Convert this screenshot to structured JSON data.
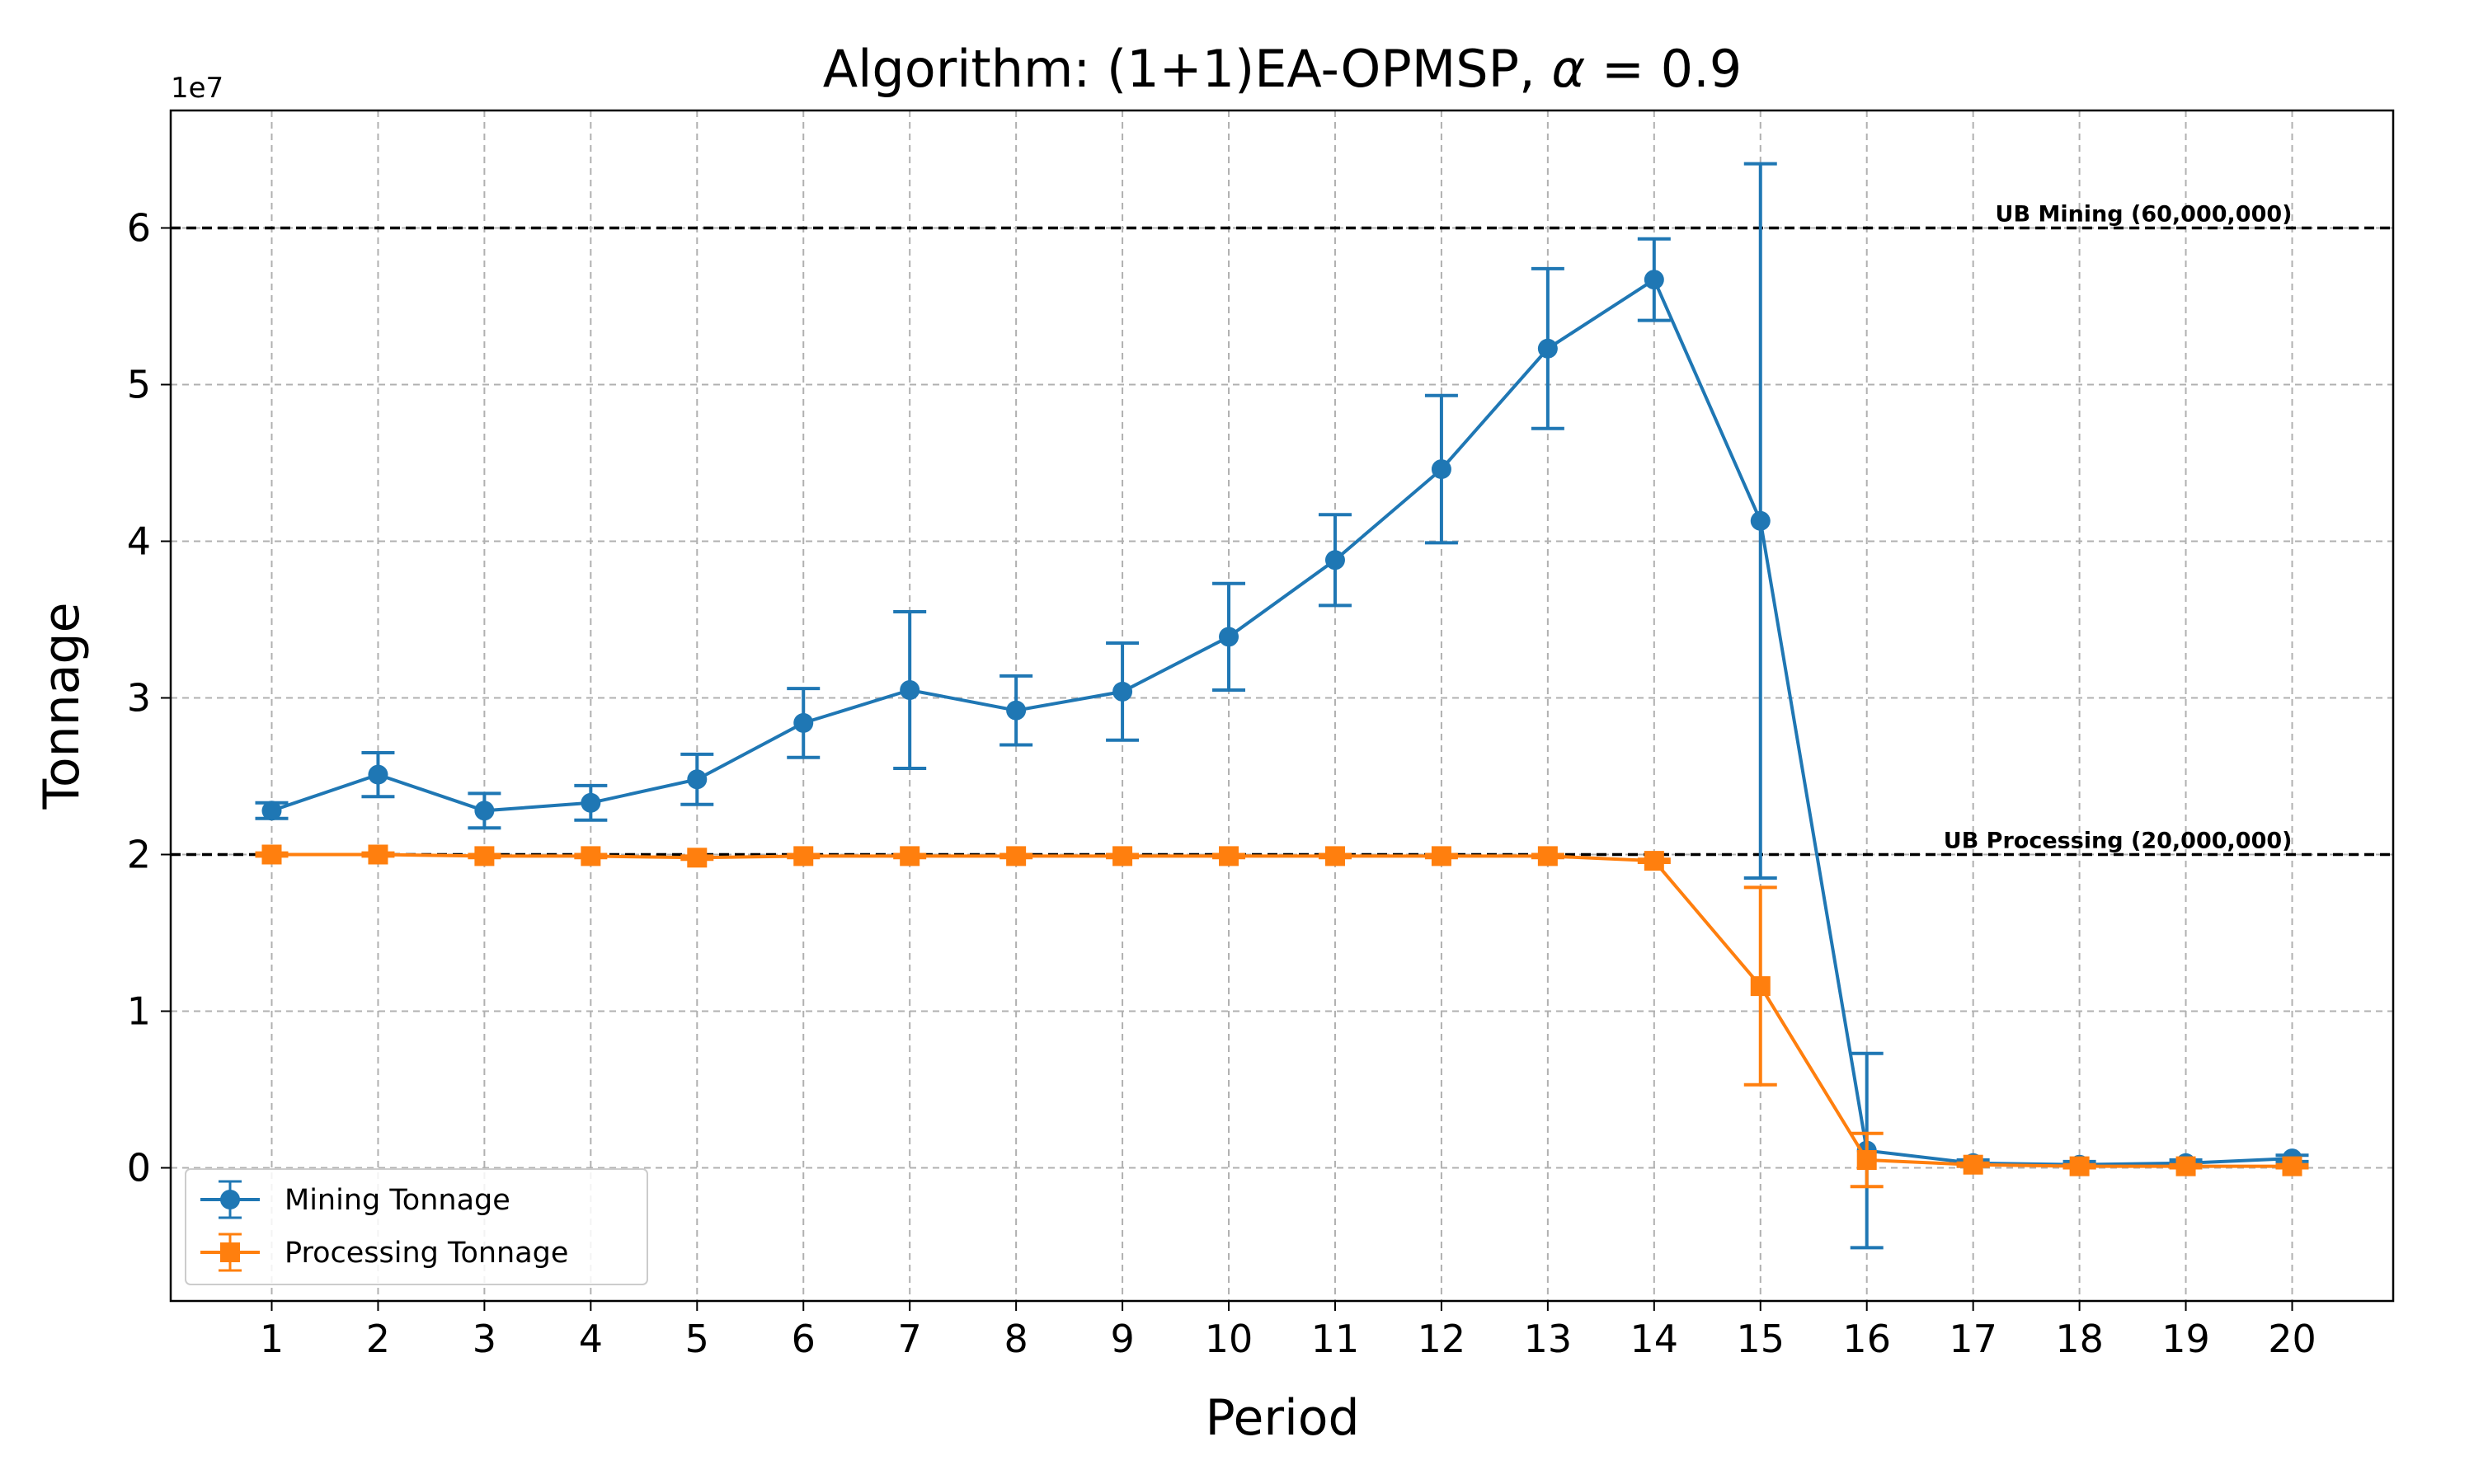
{
  "chart_data": {
    "type": "line",
    "title": "Algorithm: (1+1)EA-OPMSP, α = 0.9",
    "title_parts": {
      "prefix": "Algorithm: (1+1)EA-OPMSP, ",
      "symbol": "α",
      "suffix": " = 0.9"
    },
    "xlabel": "Period",
    "ylabel": "Tonnage",
    "y_offset_label": "1e7",
    "xlim": [
      0.05,
      20.95
    ],
    "ylim": [
      -8500000,
      67500000
    ],
    "grid": true,
    "legend_position": "lower-left",
    "x": [
      1,
      2,
      3,
      4,
      5,
      6,
      7,
      8,
      9,
      10,
      11,
      12,
      13,
      14,
      15,
      16,
      17,
      18,
      19,
      20
    ],
    "x_tick_labels": [
      "1",
      "2",
      "3",
      "4",
      "5",
      "6",
      "7",
      "8",
      "9",
      "10",
      "11",
      "12",
      "13",
      "14",
      "15",
      "16",
      "17",
      "18",
      "19",
      "20"
    ],
    "y_ticks": [
      0,
      10000000,
      20000000,
      30000000,
      40000000,
      50000000,
      60000000
    ],
    "y_tick_labels": [
      "0",
      "1",
      "2",
      "3",
      "4",
      "5",
      "6"
    ],
    "series": [
      {
        "name": "Mining Tonnage",
        "color": "#1f77b4",
        "marker": "circle",
        "values": [
          22800000,
          25100000,
          22800000,
          23300000,
          24800000,
          28400000,
          30500000,
          29200000,
          30400000,
          33900000,
          38800000,
          44600000,
          52300000,
          56700000,
          41300000,
          1100000,
          300000,
          200000,
          300000,
          600000
        ],
        "errors": [
          500000,
          1400000,
          1100000,
          1100000,
          1600000,
          2200000,
          5000000,
          2200000,
          3100000,
          3400000,
          2900000,
          4700000,
          5100000,
          2600000,
          22800000,
          6200000,
          200000,
          200000,
          200000,
          200000
        ]
      },
      {
        "name": "Processing Tonnage",
        "color": "#ff7f0e",
        "marker": "square",
        "values": [
          20000000,
          20000000,
          19900000,
          19900000,
          19800000,
          19900000,
          19900000,
          19900000,
          19900000,
          19900000,
          19900000,
          19900000,
          19900000,
          19600000,
          11600000,
          500000,
          200000,
          100000,
          100000,
          100000
        ],
        "errors": [
          100000,
          100000,
          100000,
          100000,
          100000,
          100000,
          100000,
          100000,
          100000,
          100000,
          100000,
          100000,
          100000,
          100000,
          6300000,
          1700000,
          100000,
          100000,
          100000,
          100000
        ]
      }
    ],
    "reference_lines": [
      {
        "label": "UB Mining (60,000,000)",
        "y": 60000000,
        "color": "#000000"
      },
      {
        "label": "UB Processing (20,000,000)",
        "y": 20000000,
        "color": "#000000"
      }
    ]
  }
}
